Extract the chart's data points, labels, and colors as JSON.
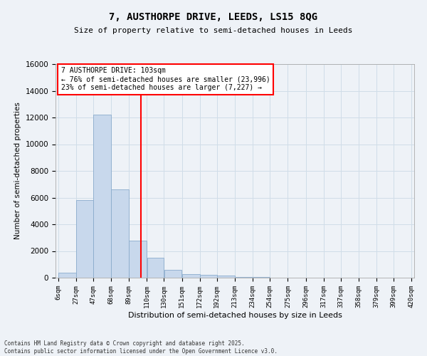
{
  "title1": "7, AUSTHORPE DRIVE, LEEDS, LS15 8QG",
  "title2": "Size of property relative to semi-detached houses in Leeds",
  "xlabel": "Distribution of semi-detached houses by size in Leeds",
  "ylabel": "Number of semi-detached properties",
  "bin_edges": [
    6,
    27,
    47,
    68,
    89,
    110,
    130,
    151,
    172,
    192,
    213,
    234,
    254,
    275,
    296,
    317,
    337,
    358,
    379,
    399,
    420
  ],
  "bar_heights": [
    400,
    5800,
    12200,
    6600,
    2800,
    1500,
    600,
    250,
    200,
    150,
    50,
    30,
    20,
    10,
    5,
    5,
    3,
    2,
    1,
    1
  ],
  "bar_color": "#c8d8ec",
  "bar_edge_color": "#8aabcc",
  "vline_color": "red",
  "vline_x": 103,
  "ylim": [
    0,
    16000
  ],
  "yticks": [
    0,
    2000,
    4000,
    6000,
    8000,
    10000,
    12000,
    14000,
    16000
  ],
  "grid_color": "#d0dde8",
  "annotation_box_color": "#ffffff",
  "annotation_box_edge": "red",
  "annotation_line1": "7 AUSTHORPE DRIVE: 103sqm",
  "annotation_line2": "← 76% of semi-detached houses are smaller (23,996)",
  "annotation_line3": "23% of semi-detached houses are larger (7,227) →",
  "footer_text": "Contains HM Land Registry data © Crown copyright and database right 2025.\nContains public sector information licensed under the Open Government Licence v3.0.",
  "background_color": "#eef2f7"
}
